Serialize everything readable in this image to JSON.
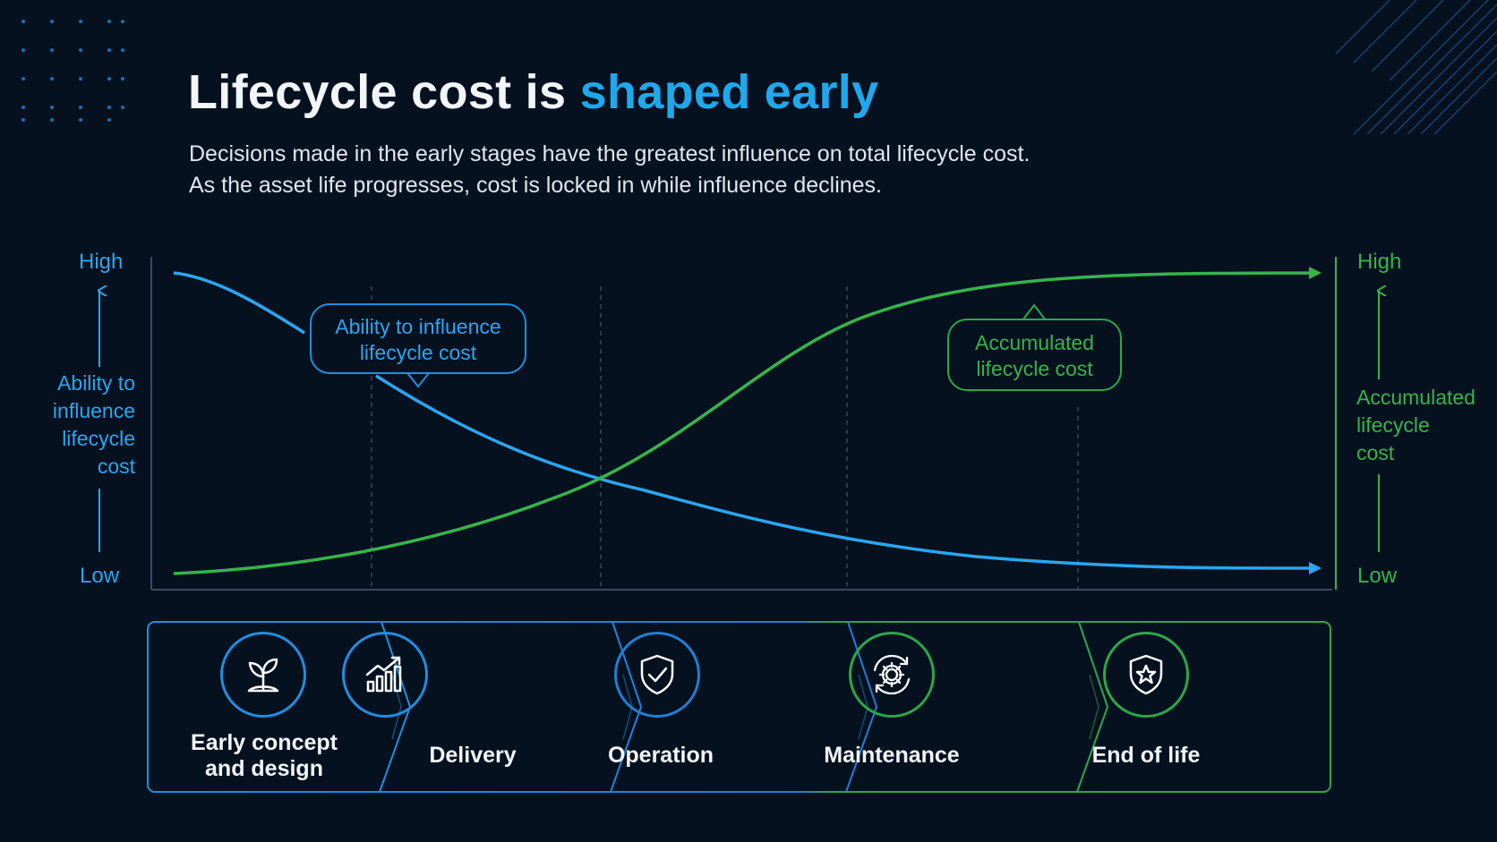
{
  "header": {
    "title_plain": "Lifecycle cost is ",
    "title_accent": "shaped early",
    "subtitle_line1": "Decisions made in the early stages have the greatest influence on total lifecycle cost.",
    "subtitle_line2": "As the asset life progresses, cost is locked in while influence declines."
  },
  "colors": {
    "background": "#06111f",
    "accent_blue": "#1fa8ec",
    "influence_blue": "#2aa6f0",
    "cost_green": "#35b54a"
  },
  "axes": {
    "left": {
      "high": "High",
      "low": "Low",
      "label_lines": [
        "Ability to",
        "influence",
        "lifecycle",
        "cost"
      ]
    },
    "right": {
      "high": "High",
      "low": "Low",
      "label_lines": [
        "Accumulated",
        "lifecycle",
        "cost"
      ]
    }
  },
  "callouts": {
    "influence_lines": [
      "Ability to influence",
      "lifecycle cost"
    ],
    "cost_lines": [
      "Accumulated",
      "lifecycle cost"
    ]
  },
  "stages": [
    {
      "label_lines": [
        "Early concept",
        "and design"
      ],
      "icon": "sprout-icon",
      "color": "#1f8fe0"
    },
    {
      "label_lines": [
        "Delivery"
      ],
      "icon": "growth-chart-icon",
      "color": "#1f8fe0"
    },
    {
      "label_lines": [
        "Operation"
      ],
      "icon": "shield-check-icon",
      "color": "#1f7fd6"
    },
    {
      "label_lines": [
        "Maintenance"
      ],
      "icon": "gear-cycle-icon",
      "color": "#2ba84a"
    },
    {
      "label_lines": [
        "End of life"
      ],
      "icon": "shield-star-icon",
      "color": "#2ba84a"
    }
  ]
}
